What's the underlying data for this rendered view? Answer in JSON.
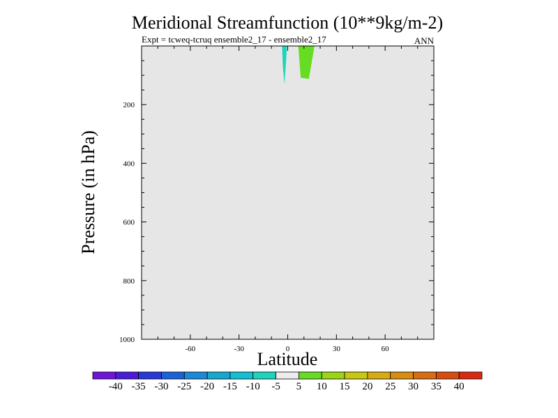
{
  "chart_data": {
    "type": "contour",
    "title": "Meridional Streamfunction (10**9kg/m-2)",
    "subtitle_left": "Expt = tcweq-tcruq ensemble2_17 - ensemble2_17",
    "subtitle_right": "ANN",
    "xlabel": "Latitude",
    "ylabel": "Pressure (in hPa)",
    "xlim": [
      -90,
      90
    ],
    "ylim": [
      1000,
      0
    ],
    "x_ticks": [
      -60,
      -30,
      0,
      30,
      60
    ],
    "x_tick_labels": [
      "-60",
      "-30",
      "0",
      "30",
      "60"
    ],
    "y_ticks": [
      200,
      400,
      600,
      800,
      1000
    ],
    "y_tick_labels": [
      "200",
      "400",
      "600",
      "800",
      "1000"
    ],
    "background_color": "#e6e6e6",
    "regions": [
      {
        "name": "negative-cell",
        "level": "-10 to -5",
        "color": "#1fd4bc",
        "polygon": [
          [
            -3.5,
            0
          ],
          [
            -0.5,
            0
          ],
          [
            -1,
            50
          ],
          [
            -2,
            130
          ],
          [
            -3,
            70
          ]
        ]
      },
      {
        "name": "positive-cell",
        "level": "5 to 10",
        "color": "#66dd22",
        "polygon": [
          [
            6.5,
            0
          ],
          [
            16.5,
            0
          ],
          [
            13,
            112
          ],
          [
            8,
            108
          ]
        ]
      }
    ],
    "colorbar": {
      "levels": [
        "-40",
        "-35",
        "-30",
        "-25",
        "-20",
        "-15",
        "-10",
        "-5",
        "5",
        "10",
        "15",
        "20",
        "25",
        "30",
        "35",
        "40"
      ],
      "colors": [
        "#7014d8",
        "#4a1bd8",
        "#2a38d8",
        "#1b62d8",
        "#1a8ad8",
        "#14a8d0",
        "#12c0d4",
        "#1fd4bc",
        "#ececec",
        "#66dd22",
        "#9bd514",
        "#c8c810",
        "#d8ac10",
        "#d88c10",
        "#d86c10",
        "#d84c10",
        "#d82a10"
      ]
    }
  }
}
